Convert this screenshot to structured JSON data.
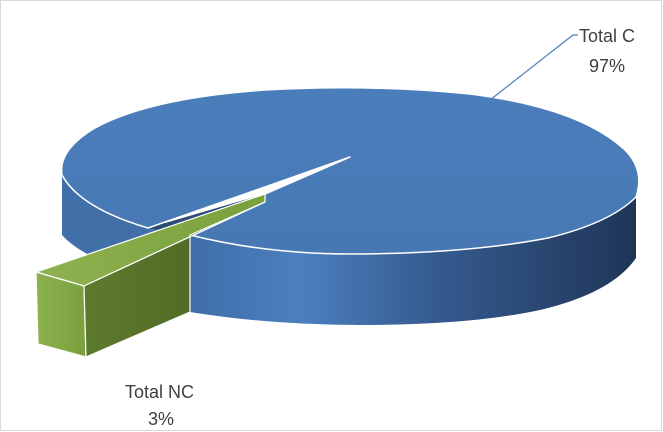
{
  "chart_data": {
    "type": "pie",
    "title": "",
    "style": "3d-exploded",
    "series": [
      {
        "name": "Total C",
        "value": 97,
        "label": "Total C",
        "percent_label": "97%",
        "color": "#4a7ebb"
      },
      {
        "name": "Total NC",
        "value": 3,
        "label": "Total NC",
        "percent_label": "3%",
        "color": "#7f9b3f"
      }
    ],
    "legend": "none",
    "data_labels": "outside-with-leader-line"
  }
}
